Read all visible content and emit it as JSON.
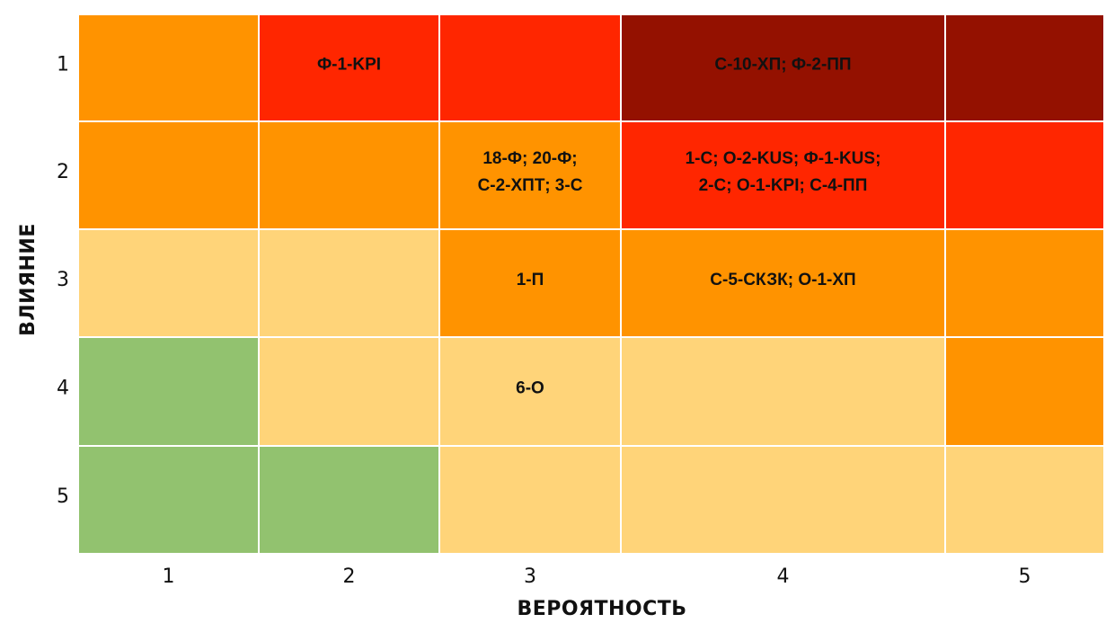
{
  "chart_data": {
    "type": "heatmap",
    "title": "",
    "xlabel": "ВЕРОЯТНОСТЬ",
    "ylabel": "ВЛИЯНИЕ",
    "x_categories": [
      "1",
      "2",
      "3",
      "4",
      "5"
    ],
    "y_categories": [
      "1",
      "2",
      "3",
      "4",
      "5"
    ],
    "colors": {
      "dark_red": "#941100",
      "red": "#FF2600",
      "orange": "#FF9300",
      "light_orange": "#FFD479",
      "green": "#92C26F"
    },
    "cells": [
      {
        "impact": "1",
        "probability": "1",
        "color": "orange",
        "lines": []
      },
      {
        "impact": "1",
        "probability": "2",
        "color": "red",
        "lines": [
          "Ф-1-KPI"
        ]
      },
      {
        "impact": "1",
        "probability": "3",
        "color": "red",
        "lines": []
      },
      {
        "impact": "1",
        "probability": "4",
        "color": "dark_red",
        "lines": [
          "С-10-ХП; Ф-2-ПП"
        ]
      },
      {
        "impact": "1",
        "probability": "5",
        "color": "dark_red",
        "lines": []
      },
      {
        "impact": "2",
        "probability": "1",
        "color": "orange",
        "lines": []
      },
      {
        "impact": "2",
        "probability": "2",
        "color": "orange",
        "lines": []
      },
      {
        "impact": "2",
        "probability": "3",
        "color": "orange",
        "lines": [
          "18-Ф; 20-Ф;",
          "С-2-ХПТ; 3-С"
        ]
      },
      {
        "impact": "2",
        "probability": "4",
        "color": "red",
        "lines": [
          "1-С; О-2-KUS; Ф-1-KUS;",
          "2-С; О-1-KPI; С-4-ПП"
        ]
      },
      {
        "impact": "2",
        "probability": "5",
        "color": "red",
        "lines": []
      },
      {
        "impact": "3",
        "probability": "1",
        "color": "light_orange",
        "lines": []
      },
      {
        "impact": "3",
        "probability": "2",
        "color": "light_orange",
        "lines": []
      },
      {
        "impact": "3",
        "probability": "3",
        "color": "orange",
        "lines": [
          "1-П"
        ]
      },
      {
        "impact": "3",
        "probability": "4",
        "color": "orange",
        "lines": [
          "С-5-СКЗК; О-1-ХП"
        ]
      },
      {
        "impact": "3",
        "probability": "5",
        "color": "orange",
        "lines": []
      },
      {
        "impact": "4",
        "probability": "1",
        "color": "green",
        "lines": []
      },
      {
        "impact": "4",
        "probability": "2",
        "color": "light_orange",
        "lines": []
      },
      {
        "impact": "4",
        "probability": "3",
        "color": "light_orange",
        "lines": [
          "6-О"
        ]
      },
      {
        "impact": "4",
        "probability": "4",
        "color": "light_orange",
        "lines": []
      },
      {
        "impact": "4",
        "probability": "5",
        "color": "orange",
        "lines": []
      },
      {
        "impact": "5",
        "probability": "1",
        "color": "green",
        "lines": []
      },
      {
        "impact": "5",
        "probability": "2",
        "color": "green",
        "lines": []
      },
      {
        "impact": "5",
        "probability": "3",
        "color": "light_orange",
        "lines": []
      },
      {
        "impact": "5",
        "probability": "4",
        "color": "light_orange",
        "lines": []
      },
      {
        "impact": "5",
        "probability": "5",
        "color": "light_orange",
        "lines": []
      }
    ]
  }
}
